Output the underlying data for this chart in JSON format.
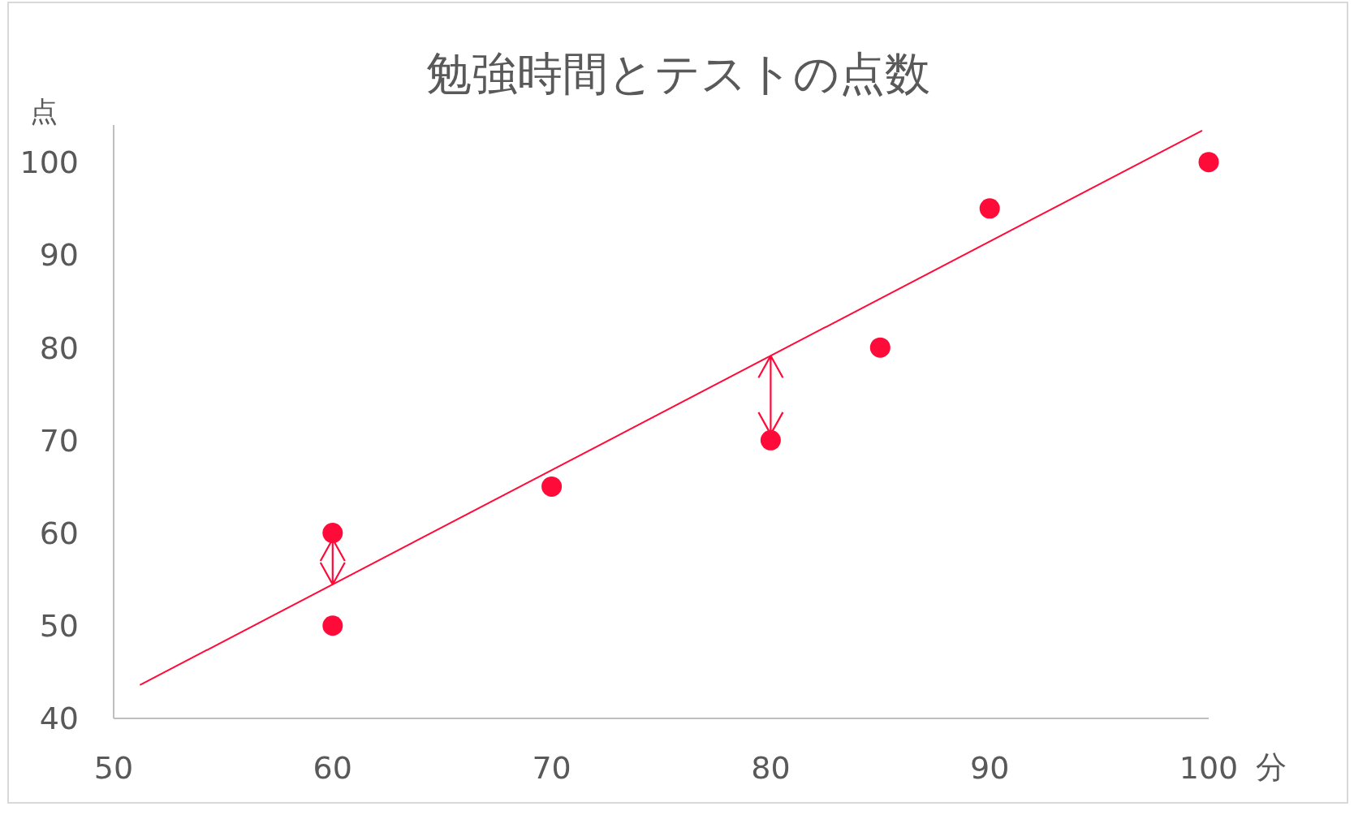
{
  "chart_data": {
    "type": "scatter",
    "title": "勉強時間とテストの点数",
    "xlabel": "分",
    "ylabel": "点",
    "x": [
      60,
      60,
      70,
      80,
      85,
      90,
      100
    ],
    "series": [
      {
        "type": "scatter",
        "color": "#ff0b39",
        "marker": "circle",
        "values": [
          50,
          60,
          65,
          70,
          80,
          95,
          100
        ]
      },
      {
        "type": "line",
        "color": "#ff0b39",
        "marker": "none",
        "line_style": "solid",
        "x": [
          51.2,
          99.7
        ],
        "values": [
          43.6,
          103.4
        ]
      }
    ],
    "xlim": [
      50,
      100
    ],
    "ylim": [
      40,
      104
    ],
    "xticks": [
      50,
      60,
      70,
      80,
      90,
      100
    ],
    "yticks": [
      40,
      50,
      60,
      70,
      80,
      90,
      100
    ]
  }
}
